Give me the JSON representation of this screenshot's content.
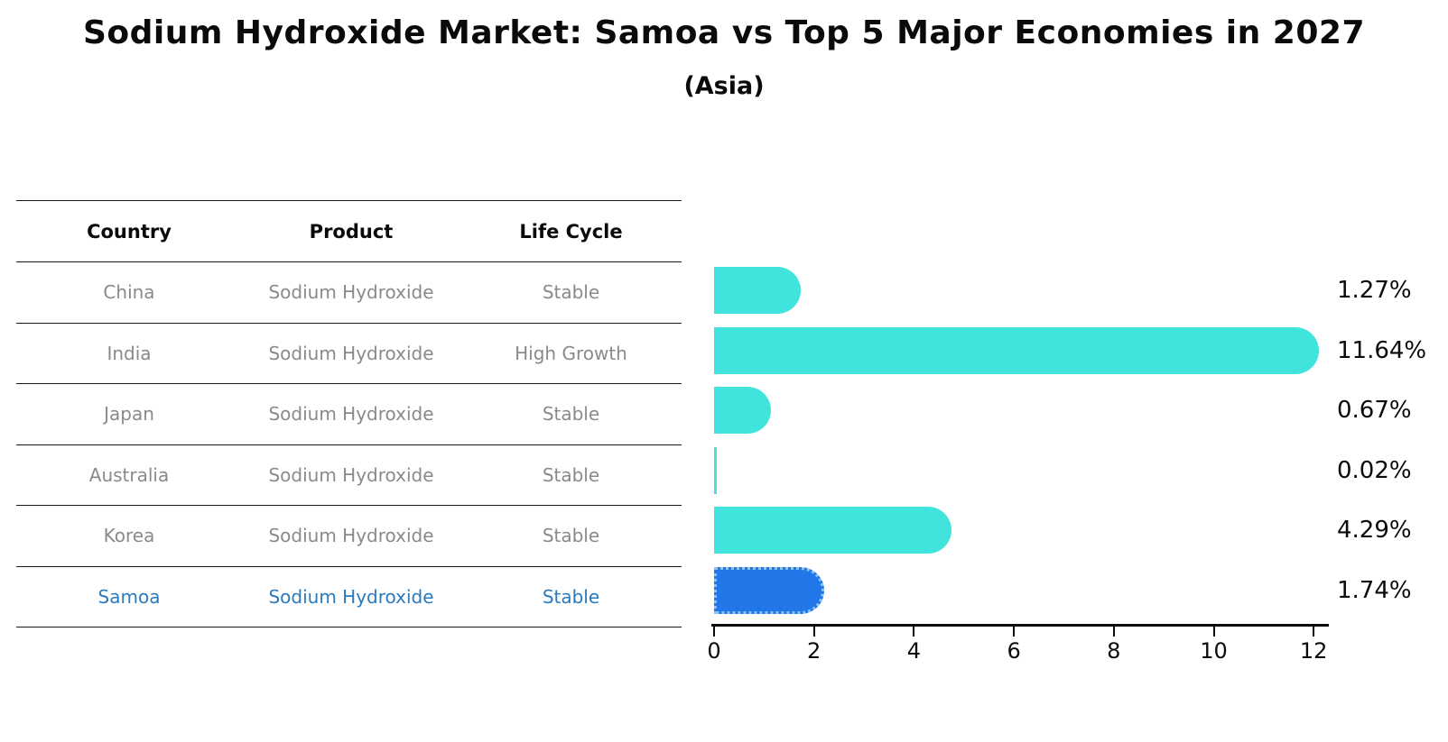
{
  "chart_data": {
    "type": "bar",
    "orientation": "horizontal",
    "title": "Sodium Hydroxide Market: Samoa vs Top 5 Major Economies in 2027",
    "subtitle": "(Asia)",
    "table_headers": [
      "Country",
      "Product",
      "Life Cycle"
    ],
    "rows": [
      {
        "country": "China",
        "product": "Sodium Hydroxide",
        "life_cycle": "Stable",
        "value": 1.27,
        "label": "1.27%",
        "highlight": false
      },
      {
        "country": "India",
        "product": "Sodium Hydroxide",
        "life_cycle": "High Growth",
        "value": 11.64,
        "label": "11.64%",
        "highlight": false
      },
      {
        "country": "Japan",
        "product": "Sodium Hydroxide",
        "life_cycle": "Stable",
        "value": 0.67,
        "label": "0.67%",
        "highlight": false
      },
      {
        "country": "Australia",
        "product": "Sodium Hydroxide",
        "life_cycle": "Stable",
        "value": 0.02,
        "label": "0.02%",
        "highlight": false
      },
      {
        "country": "Korea",
        "product": "Sodium Hydroxide",
        "life_cycle": "Stable",
        "value": 4.29,
        "label": "4.29%",
        "highlight": false
      },
      {
        "country": "Samoa",
        "product": "Sodium Hydroxide",
        "life_cycle": "Stable",
        "value": 1.74,
        "label": "1.74%",
        "highlight": true
      }
    ],
    "x_axis": {
      "ticks": [
        0,
        2,
        4,
        6,
        8,
        10,
        12
      ],
      "min": 0,
      "max": 12
    },
    "colors": {
      "bar": "#40e4dc",
      "highlight_bar": "#2277e8",
      "highlight_bar_border": "#8ac2f3",
      "highlight_text": "#2b7abd",
      "body_text": "#8a8a8a",
      "ink": "#0a0a0a"
    }
  }
}
